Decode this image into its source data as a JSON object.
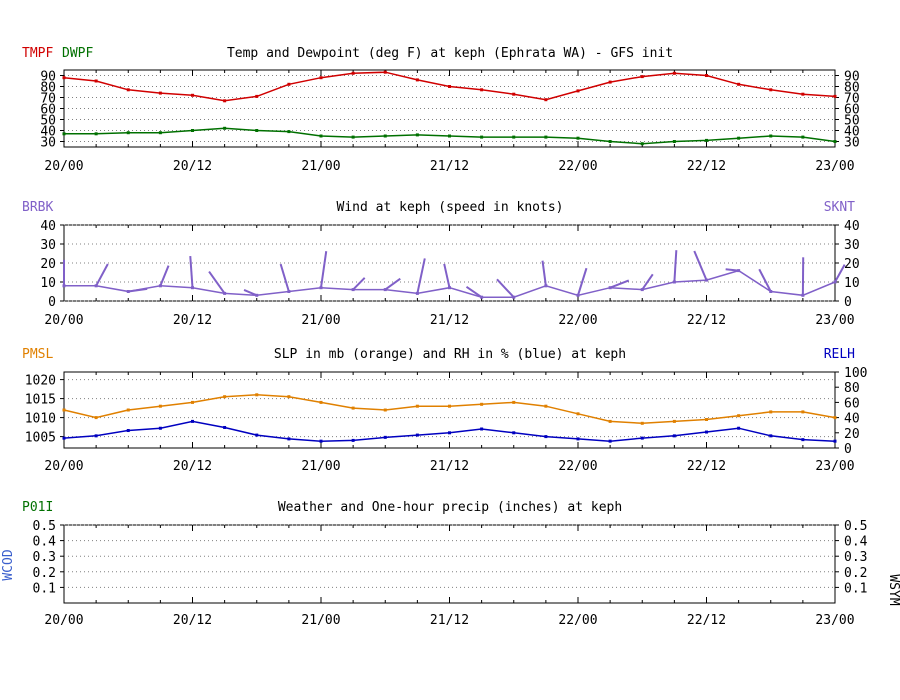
{
  "time_axis": [
    "20/00",
    "20/12",
    "21/00",
    "21/12",
    "22/00",
    "22/12",
    "23/00"
  ],
  "colors": {
    "temp": "#d00000",
    "dewp": "#007000",
    "wind": "#8060c8",
    "slp": "#e08000",
    "rh": "#0000c0",
    "axis": "#000000",
    "grid": "#808080"
  },
  "chart_data": [
    {
      "type": "line",
      "title": "Temp and Dewpoint (deg F) at keph  (Ephrata WA) - GFS init",
      "left_labels": [
        "TMPF",
        "DWPF"
      ],
      "x_ticks": [
        "20/00",
        "20/12",
        "21/00",
        "21/12",
        "22/00",
        "22/12",
        "23/00"
      ],
      "ylim": [
        25,
        95
      ],
      "y_ticks": [
        30,
        40,
        50,
        60,
        70,
        80,
        90
      ],
      "right_y_ticks": [
        30,
        40,
        50,
        60,
        70,
        80,
        90
      ],
      "grid": true,
      "series": [
        {
          "name": "TMPF",
          "x": [
            0,
            3,
            6,
            9,
            12,
            15,
            18,
            21,
            24,
            27,
            30,
            33,
            36,
            39,
            42,
            45,
            48,
            51,
            54,
            57,
            60,
            63,
            66,
            69,
            72
          ],
          "values": [
            88,
            85,
            77,
            74,
            72,
            67,
            71,
            82,
            88,
            92,
            93,
            86,
            80,
            77,
            73,
            68,
            76,
            84,
            89,
            92,
            90,
            82,
            77,
            73,
            71
          ]
        },
        {
          "name": "DWPF",
          "x": [
            0,
            3,
            6,
            9,
            12,
            15,
            18,
            21,
            24,
            27,
            30,
            33,
            36,
            39,
            42,
            45,
            48,
            51,
            54,
            57,
            60,
            63,
            66,
            69,
            72
          ],
          "values": [
            37,
            37,
            38,
            38,
            40,
            42,
            40,
            39,
            35,
            34,
            35,
            36,
            35,
            34,
            34,
            34,
            33,
            30,
            28,
            30,
            31,
            33,
            35,
            34,
            30
          ]
        }
      ]
    },
    {
      "type": "line",
      "title": "Wind at  keph  (speed in knots)",
      "left_labels": [
        "BRBK"
      ],
      "right_labels": [
        "SKNT"
      ],
      "x_ticks": [
        "20/00",
        "20/12",
        "21/00",
        "21/12",
        "22/00",
        "22/12",
        "23/00"
      ],
      "ylim": [
        0,
        40
      ],
      "y_ticks": [
        0,
        10,
        20,
        30,
        40
      ],
      "right_y_ticks": [
        0,
        10,
        20,
        30,
        40
      ],
      "grid": true,
      "series": [
        {
          "name": "SKNT",
          "x": [
            0,
            3,
            6,
            9,
            12,
            15,
            18,
            21,
            24,
            27,
            30,
            33,
            36,
            39,
            42,
            45,
            48,
            51,
            54,
            57,
            60,
            63,
            66,
            69,
            72
          ],
          "values": [
            8,
            8,
            5,
            8,
            7,
            4,
            3,
            5,
            7,
            6,
            6,
            4,
            7,
            2,
            2,
            8,
            3,
            7,
            6,
            10,
            11,
            16,
            5,
            3,
            10
          ]
        }
      ]
    },
    {
      "type": "line",
      "title": "SLP in mb (orange) and RH in % (blue) at  keph",
      "left_labels": [
        "PMSL"
      ],
      "right_labels": [
        "RELH"
      ],
      "x_ticks": [
        "20/00",
        "20/12",
        "21/00",
        "21/12",
        "22/00",
        "22/12",
        "23/00"
      ],
      "ylim": [
        1002,
        1022
      ],
      "y_ticks": [
        1005,
        1010,
        1015,
        1020
      ],
      "right_ylim": [
        0,
        100
      ],
      "right_y_ticks": [
        0,
        20,
        40,
        60,
        80,
        100
      ],
      "grid": true,
      "series": [
        {
          "name": "PMSL",
          "x": [
            0,
            3,
            6,
            9,
            12,
            15,
            18,
            21,
            24,
            27,
            30,
            33,
            36,
            39,
            42,
            45,
            48,
            51,
            54,
            57,
            60,
            63,
            66,
            69,
            72
          ],
          "values": [
            1012,
            1010,
            1012,
            1013,
            1014,
            1015.5,
            1016,
            1015.5,
            1014,
            1012.5,
            1012,
            1013,
            1013,
            1013.5,
            1014,
            1013,
            1011,
            1009,
            1008.5,
            1009,
            1009.5,
            1010.5,
            1011.5,
            1011.5,
            1010
          ]
        },
        {
          "name": "RELH",
          "x": [
            0,
            3,
            6,
            9,
            12,
            15,
            18,
            21,
            24,
            27,
            30,
            33,
            36,
            39,
            42,
            45,
            48,
            51,
            54,
            57,
            60,
            63,
            66,
            69,
            72
          ],
          "values": [
            13,
            16,
            23,
            26,
            35,
            27,
            17,
            12,
            9,
            10,
            14,
            17,
            20,
            25,
            20,
            15,
            12,
            9,
            13,
            16,
            21,
            26,
            16,
            11,
            9
          ]
        }
      ]
    },
    {
      "type": "line",
      "title": "Weather and One-hour precip (inches) at  keph",
      "left_labels": [
        "P01I"
      ],
      "side_labels": [
        "WCOD",
        "WSYM"
      ],
      "x_ticks": [
        "20/00",
        "20/12",
        "21/00",
        "21/12",
        "22/00",
        "22/12",
        "23/00"
      ],
      "ylim": [
        0,
        0.5
      ],
      "y_ticks": [
        0.1,
        0.2,
        0.3,
        0.4,
        0.5
      ],
      "right_y_ticks": [
        0.1,
        0.2,
        0.3,
        0.4,
        0.5
      ],
      "grid": true,
      "series": []
    }
  ]
}
